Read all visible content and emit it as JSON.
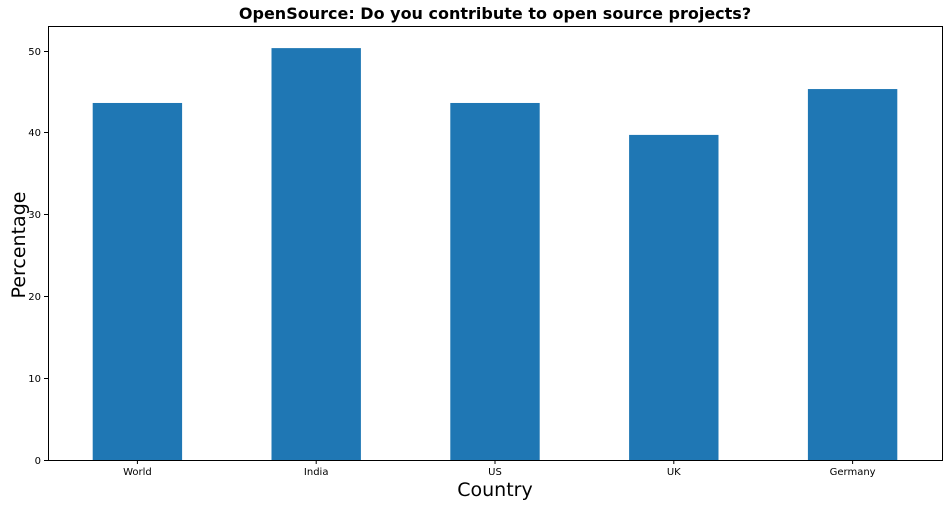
{
  "chart_data": {
    "type": "bar",
    "title": "OpenSource: Do you contribute to open source projects?",
    "xlabel": "Country",
    "ylabel": "Percentage",
    "categories": [
      "World",
      "India",
      "US",
      "UK",
      "Germany"
    ],
    "values": [
      43.6,
      50.3,
      43.6,
      39.7,
      45.3
    ],
    "ylim": [
      0,
      53
    ],
    "yticks": [
      0,
      10,
      20,
      30,
      40,
      50
    ],
    "bar_color": "#1f77b4",
    "grid": false,
    "legend": false
  }
}
